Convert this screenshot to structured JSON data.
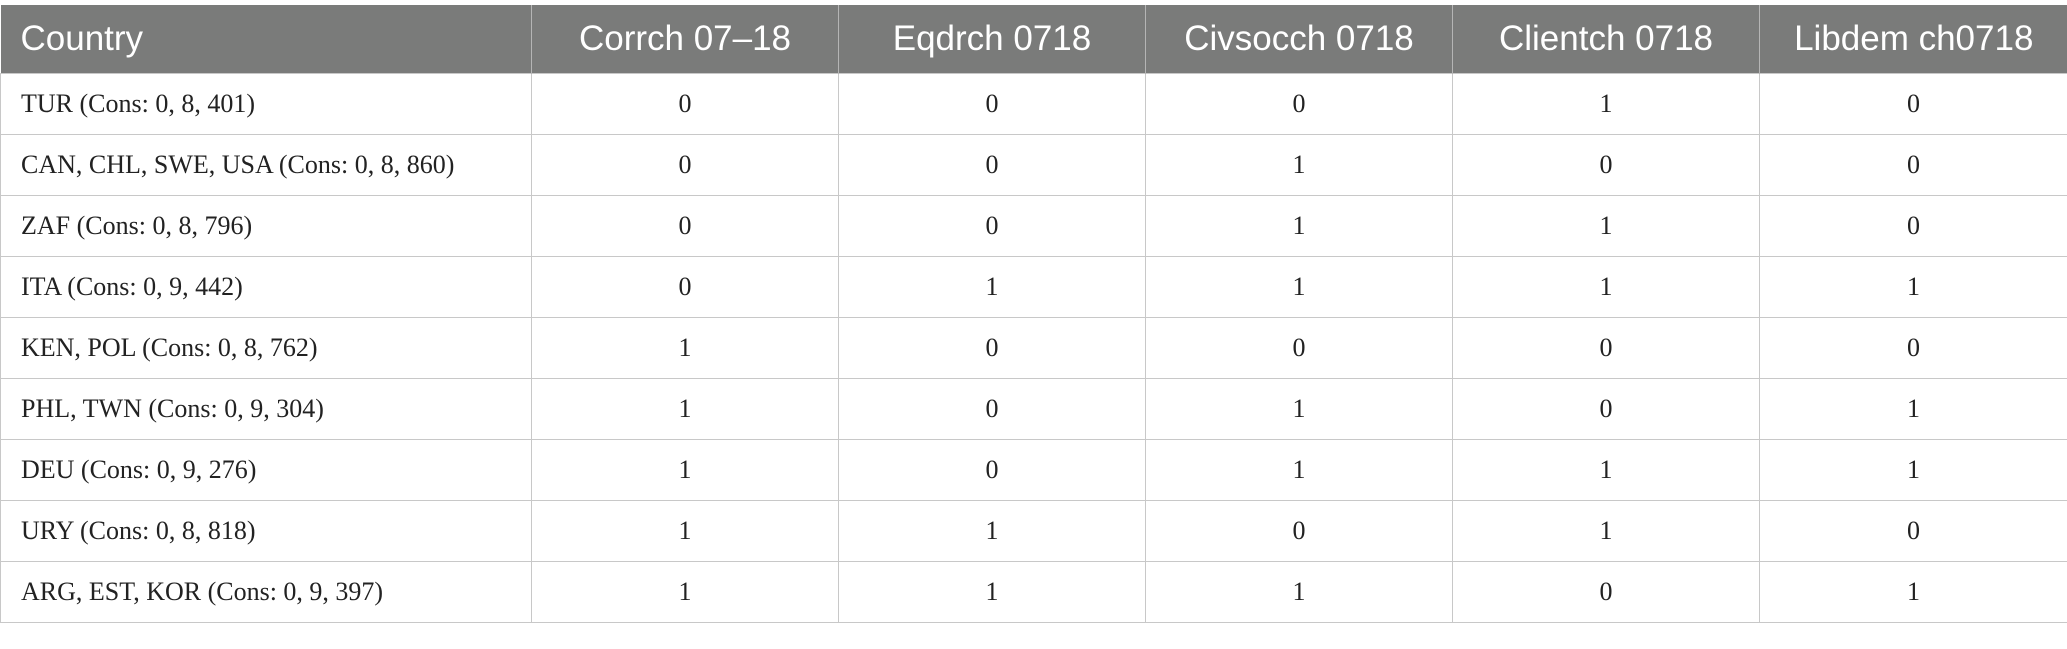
{
  "table": {
    "header": [
      "Country",
      "Corrch 07–18",
      "Eqdrch 0718",
      "Civsocch 0718",
      "Clientch 0718",
      "Libdem ch0718"
    ],
    "rows": [
      [
        "TUR (Cons: 0, 8, 401)",
        0,
        0,
        0,
        1,
        0
      ],
      [
        "CAN, CHL, SWE, USA (Cons: 0, 8, 860)",
        0,
        0,
        1,
        0,
        0
      ],
      [
        "ZAF (Cons: 0, 8, 796)",
        0,
        0,
        1,
        1,
        0
      ],
      [
        "ITA (Cons: 0, 9, 442)",
        0,
        1,
        1,
        1,
        1
      ],
      [
        "KEN, POL (Cons: 0, 8, 762)",
        1,
        0,
        0,
        0,
        0
      ],
      [
        "PHL, TWN (Cons: 0, 9, 304)",
        1,
        0,
        1,
        0,
        1
      ],
      [
        "DEU (Cons: 0, 9, 276)",
        1,
        0,
        1,
        1,
        1
      ],
      [
        "URY (Cons: 0, 8, 818)",
        1,
        1,
        0,
        1,
        0
      ],
      [
        "ARG, EST, KOR (Cons: 0, 9, 397)",
        1,
        1,
        1,
        0,
        1
      ]
    ]
  }
}
